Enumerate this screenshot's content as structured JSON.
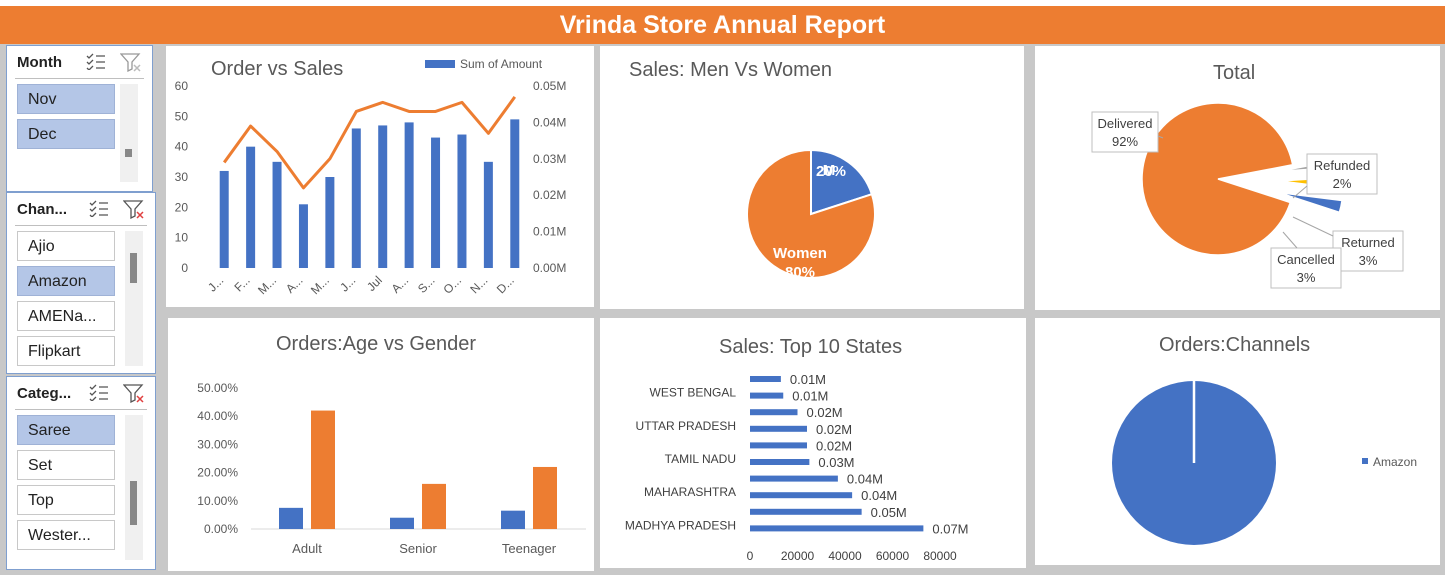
{
  "title": "Vrinda Store Annual Report",
  "slicers": {
    "month": {
      "label": "Month",
      "items": [
        "Nov",
        "Dec"
      ],
      "selected": [
        "Nov",
        "Dec"
      ]
    },
    "channel": {
      "label": "Chan...",
      "items": [
        "Ajio",
        "Amazon",
        "AMENa...",
        "Flipkart"
      ],
      "selected": [
        "Amazon"
      ]
    },
    "category": {
      "label": "Categ...",
      "items": [
        "Saree",
        "Set",
        "Top",
        "Wester..."
      ],
      "selected": [
        "Saree"
      ]
    }
  },
  "chart_data": [
    {
      "type": "bar",
      "title": "Order vs Sales",
      "legend": "Sum of Amount",
      "categories": [
        "J...",
        "F...",
        "M...",
        "A...",
        "M...",
        "J...",
        "Jul",
        "A...",
        "S...",
        "O...",
        "N...",
        "D..."
      ],
      "orders": [
        32,
        40,
        35,
        21,
        30,
        46,
        47,
        48,
        43,
        44,
        35,
        49
      ],
      "sales": [
        0.029,
        0.039,
        0.032,
        0.022,
        0.03,
        0.043,
        0.0455,
        0.043,
        0.043,
        0.0455,
        0.037,
        0.047
      ],
      "y_ticks": [
        "60",
        "50",
        "40",
        "30",
        "20",
        "10",
        "0"
      ],
      "y2_ticks": [
        "0.05M",
        "0.04M",
        "0.03M",
        "0.02M",
        "0.01M",
        "0.00M"
      ],
      "ylim": [
        0,
        60
      ],
      "y2lim": [
        0,
        0.05
      ]
    },
    {
      "type": "pie",
      "title": "Sales: Men Vs Women",
      "slices": [
        {
          "label": "Men",
          "value": 20,
          "text": "20%",
          "short": "M",
          "color": "#4472c4"
        },
        {
          "label": "Women",
          "value": 80,
          "text": "80%",
          "color": "#ed7d31"
        }
      ]
    },
    {
      "type": "pie",
      "title": "Total",
      "slices": [
        {
          "label": "Delivered",
          "value": 92,
          "text": "92%",
          "color": "#ed7d31"
        },
        {
          "label": "Refunded",
          "value": 2,
          "text": "2%",
          "color": "#a5a5a5"
        },
        {
          "label": "Returned",
          "value": 3,
          "text": "3%",
          "color": "#ffc000"
        },
        {
          "label": "Cancelled",
          "value": 3,
          "text": "3%",
          "color": "#4472c4"
        }
      ]
    },
    {
      "type": "bar",
      "title": "Orders:Age vs Gender",
      "categories": [
        "Adult",
        "Senior",
        "Teenager"
      ],
      "series": [
        {
          "values": [
            7.5,
            4,
            6.5
          ],
          "color": "#4472c4"
        },
        {
          "values": [
            42,
            16,
            22
          ],
          "color": "#ed7d31"
        }
      ],
      "y_ticks": [
        "50.00%",
        "40.00%",
        "30.00%",
        "20.00%",
        "10.00%",
        "0.00%"
      ],
      "ylim": [
        0,
        50
      ]
    },
    {
      "type": "bar",
      "title": "Sales: Top 10 States",
      "state_labels": [
        "WEST BENGAL",
        "UTTAR PRADESH",
        "TAMIL NADU",
        "MAHARASHTRA",
        "MADHYA PRADESH"
      ],
      "values": [
        13000,
        14000,
        20000,
        24000,
        24000,
        25000,
        37000,
        43000,
        47000,
        73000
      ],
      "value_labels": [
        "0.01M",
        "0.01M",
        "0.02M",
        "0.02M",
        "0.02M",
        "0.03M",
        "0.04M",
        "0.04M",
        "0.05M",
        "0.07M"
      ],
      "x_ticks": [
        "0",
        "20000",
        "40000",
        "60000",
        "80000"
      ],
      "xlim": [
        0,
        80000
      ]
    },
    {
      "type": "pie",
      "title": "Orders:Channels",
      "legend": "Amazon",
      "slices": [
        {
          "label": "Amazon",
          "value": 100,
          "color": "#4472c4"
        }
      ]
    }
  ]
}
